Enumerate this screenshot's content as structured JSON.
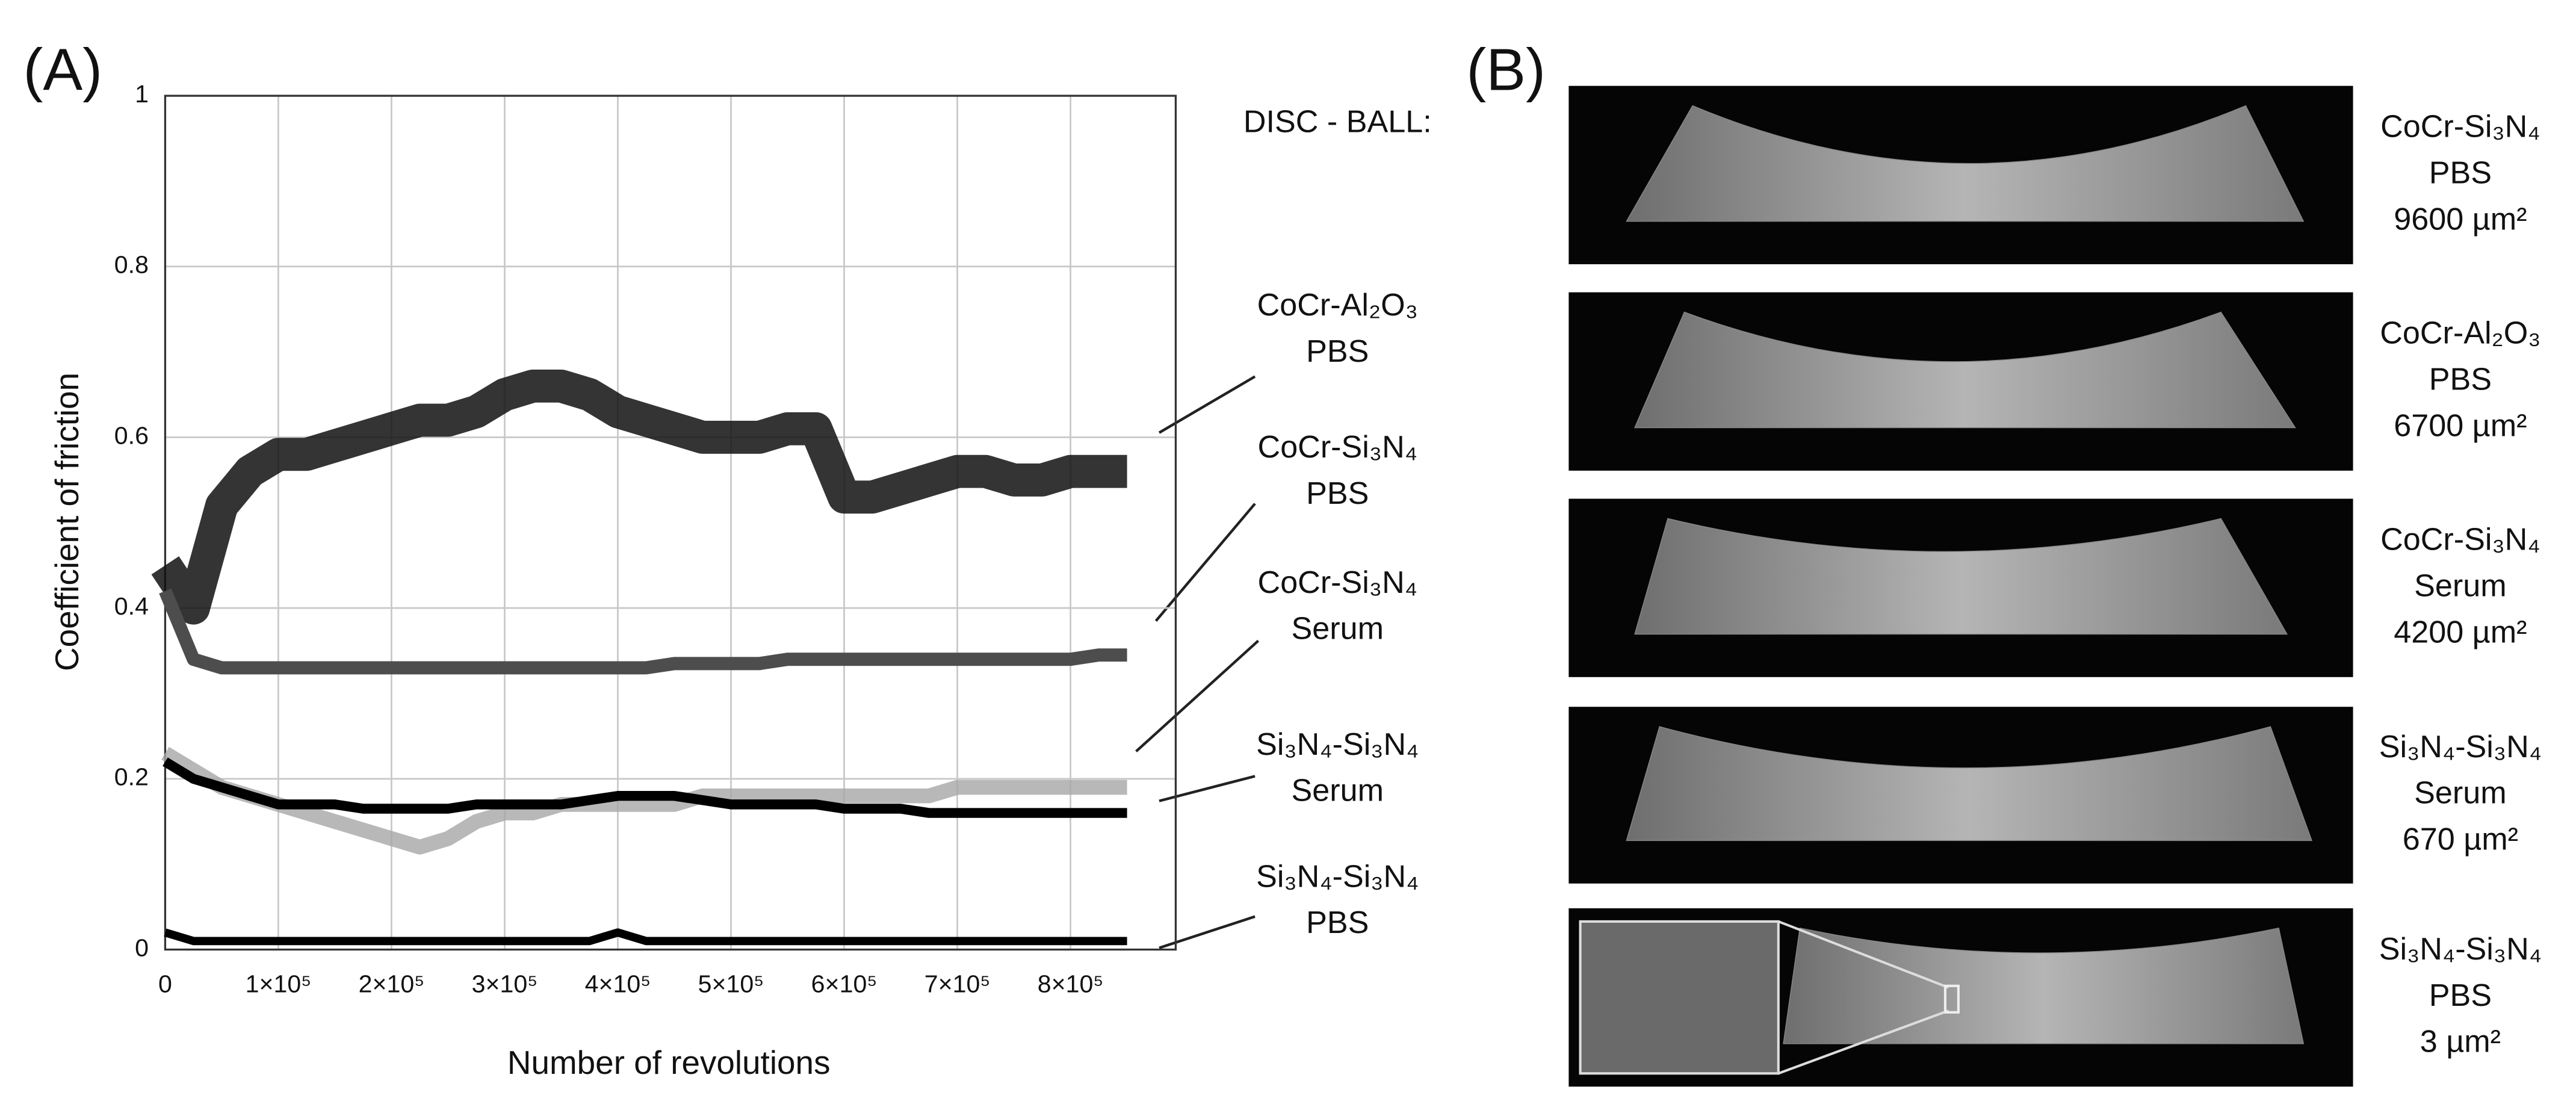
{
  "chart_data": {
    "type": "line",
    "panel_label": "(A)",
    "legend_title": "DISC - BALL:",
    "xlabel": "Number of revolutions",
    "ylabel": "Coefficient of friction",
    "x": [
      0,
      25000,
      50000,
      75000,
      100000,
      125000,
      150000,
      175000,
      200000,
      225000,
      250000,
      275000,
      300000,
      325000,
      350000,
      375000,
      400000,
      425000,
      450000,
      475000,
      500000,
      525000,
      550000,
      575000,
      600000,
      625000,
      650000,
      675000,
      700000,
      725000,
      750000,
      775000,
      800000,
      825000,
      850000
    ],
    "series": [
      {
        "name": "CoCr-Al₂O₃ PBS",
        "color": "#111111",
        "values": [
          0.45,
          0.4,
          0.52,
          0.56,
          0.58,
          0.58,
          0.59,
          0.6,
          0.61,
          0.62,
          0.62,
          0.63,
          0.65,
          0.66,
          0.66,
          0.65,
          0.63,
          0.62,
          0.61,
          0.6,
          0.6,
          0.6,
          0.61,
          0.61,
          0.53,
          0.53,
          0.54,
          0.55,
          0.56,
          0.56,
          0.55,
          0.55,
          0.56,
          0.56,
          0.56
        ]
      },
      {
        "name": "CoCr-Si₃N₄ PBS",
        "color": "#4d4d4d",
        "values": [
          0.42,
          0.34,
          0.33,
          0.33,
          0.33,
          0.33,
          0.33,
          0.33,
          0.33,
          0.33,
          0.33,
          0.33,
          0.33,
          0.33,
          0.33,
          0.33,
          0.33,
          0.33,
          0.335,
          0.335,
          0.335,
          0.335,
          0.34,
          0.34,
          0.34,
          0.34,
          0.34,
          0.34,
          0.34,
          0.34,
          0.34,
          0.34,
          0.34,
          0.345,
          0.345
        ]
      },
      {
        "name": "CoCr-Si₃N₄ Serum",
        "color": "#a6a6a6",
        "values": [
          0.23,
          0.21,
          0.19,
          0.18,
          0.17,
          0.16,
          0.15,
          0.14,
          0.13,
          0.12,
          0.13,
          0.15,
          0.16,
          0.16,
          0.17,
          0.17,
          0.17,
          0.17,
          0.17,
          0.18,
          0.18,
          0.18,
          0.18,
          0.18,
          0.18,
          0.18,
          0.18,
          0.18,
          0.19,
          0.19,
          0.19,
          0.19,
          0.19,
          0.19,
          0.19
        ]
      },
      {
        "name": "Si₃N₄-Si₃N₄ Serum",
        "color": "#000000",
        "values": [
          0.22,
          0.2,
          0.19,
          0.18,
          0.17,
          0.17,
          0.17,
          0.165,
          0.165,
          0.165,
          0.165,
          0.17,
          0.17,
          0.17,
          0.17,
          0.175,
          0.18,
          0.18,
          0.18,
          0.175,
          0.17,
          0.17,
          0.17,
          0.17,
          0.165,
          0.165,
          0.165,
          0.16,
          0.16,
          0.16,
          0.16,
          0.16,
          0.16,
          0.16,
          0.16
        ]
      },
      {
        "name": "Si₃N₄-Si₃N₄ PBS",
        "color": "#000000",
        "values": [
          0.02,
          0.01,
          0.01,
          0.01,
          0.01,
          0.01,
          0.01,
          0.01,
          0.01,
          0.01,
          0.01,
          0.01,
          0.01,
          0.01,
          0.01,
          0.01,
          0.02,
          0.01,
          0.01,
          0.01,
          0.01,
          0.01,
          0.01,
          0.01,
          0.01,
          0.01,
          0.01,
          0.01,
          0.01,
          0.01,
          0.01,
          0.01,
          0.01,
          0.01,
          0.01
        ]
      }
    ],
    "xlim": [
      0,
      893000
    ],
    "xticks": [
      0,
      {
        "value": 100000,
        "label": "1×10⁵"
      },
      {
        "value": 200000,
        "label": "2×10⁵"
      },
      {
        "value": 300000,
        "label": "3×10⁵"
      },
      {
        "value": 400000,
        "label": "4×10⁵"
      },
      {
        "value": 500000,
        "label": "5×10⁵"
      },
      {
        "value": 600000,
        "label": "6×10⁵"
      },
      {
        "value": 700000,
        "label": "7×10⁵"
      },
      {
        "value": 800000,
        "label": "8×10⁵"
      }
    ],
    "ylim": [
      0,
      1
    ],
    "yticks": [
      0,
      0.2,
      0.4,
      0.6,
      0.8,
      1
    ],
    "grid": true
  },
  "panel_b": {
    "label": "(B)",
    "items": [
      {
        "pair": "CoCr-Si₃N₄",
        "medium": "PBS",
        "area": "9600 µm²"
      },
      {
        "pair": "CoCr-Al₂O₃",
        "medium": "PBS",
        "area": "6700 µm²"
      },
      {
        "pair": "CoCr-Si₃N₄",
        "medium": "Serum",
        "area": "4200 µm²"
      },
      {
        "pair": "Si₃N₄-Si₃N₄",
        "medium": "Serum",
        "area": "670 µm²"
      },
      {
        "pair": "Si₃N₄-Si₃N₄",
        "medium": "PBS",
        "area": "3 µm²"
      }
    ]
  }
}
